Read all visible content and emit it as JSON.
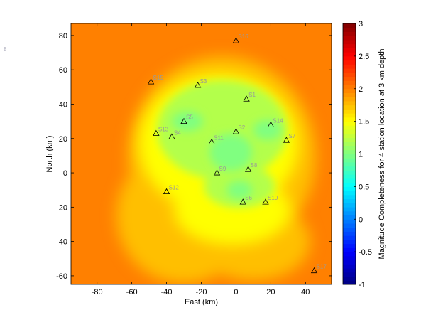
{
  "corner_note": "8",
  "chart_data": {
    "type": "heatmap",
    "title": "",
    "xlabel": "East (km)",
    "ylabel": "North (km)",
    "xlim": [
      -95,
      55
    ],
    "ylim": [
      -65,
      87
    ],
    "x_ticks": [
      -80,
      -60,
      -40,
      -20,
      0,
      20,
      40
    ],
    "y_ticks": [
      -60,
      -40,
      -20,
      0,
      20,
      40,
      60,
      80
    ],
    "colorbar": {
      "label": "Magnitude Completeness for 4 station location at 3 km depth",
      "range": [
        -1,
        3
      ],
      "ticks": [
        -1,
        -0.5,
        0,
        0.5,
        1,
        1.5,
        2,
        2.5,
        3
      ],
      "colormap": "jet"
    },
    "field_levels": {
      "outer": 2.0,
      "middle": 1.75,
      "inner": 1.5,
      "network": 1.2,
      "core": 1.0
    },
    "stations": [
      {
        "name": "S1",
        "x": 6,
        "y": 43
      },
      {
        "name": "S2",
        "x": 0,
        "y": 24
      },
      {
        "name": "S3",
        "x": -22,
        "y": 51
      },
      {
        "name": "S4",
        "x": -37,
        "y": 21
      },
      {
        "name": "S5",
        "x": -30,
        "y": 30
      },
      {
        "name": "S6",
        "x": 4,
        "y": -17
      },
      {
        "name": "S7",
        "x": 29,
        "y": 19
      },
      {
        "name": "S8",
        "x": 7,
        "y": 2
      },
      {
        "name": "S9",
        "x": -11,
        "y": 0
      },
      {
        "name": "S10",
        "x": 17,
        "y": -17
      },
      {
        "name": "S11",
        "x": -14,
        "y": 18
      },
      {
        "name": "S12",
        "x": -40,
        "y": -11
      },
      {
        "name": "S13",
        "x": -46,
        "y": 23
      },
      {
        "name": "S14",
        "x": 20,
        "y": 28
      },
      {
        "name": "S15",
        "x": -49,
        "y": 53
      },
      {
        "name": "S16",
        "x": 0,
        "y": 77
      },
      {
        "name": "S17",
        "x": 45,
        "y": -57
      }
    ]
  }
}
